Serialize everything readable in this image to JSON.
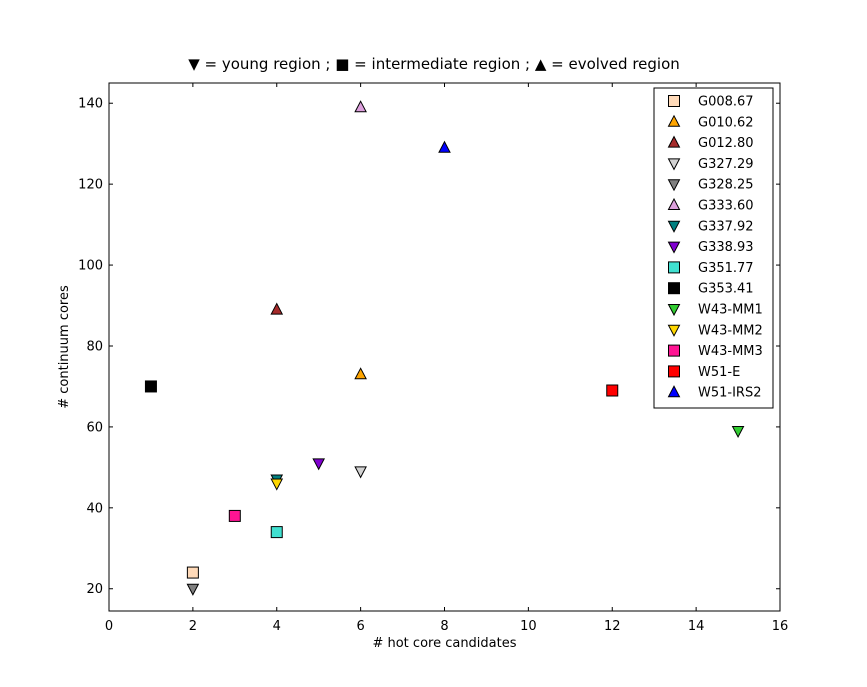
{
  "chart_data": {
    "type": "scatter",
    "title": "▼ = young region ; ■ = intermediate region ; ▲ = evolved region",
    "xlabel": "# hot core candidates",
    "ylabel": "# continuum cores",
    "xlim": [
      0,
      16
    ],
    "ylim": [
      14.5,
      145
    ],
    "xticks": [
      0,
      2,
      4,
      6,
      8,
      10,
      12,
      14,
      16
    ],
    "yticks": [
      20,
      40,
      60,
      80,
      100,
      120,
      140
    ],
    "grid": false,
    "legend_position": "top-right",
    "series": [
      {
        "name": "G008.67",
        "marker": "square",
        "color": "#ffdab9",
        "x": 2,
        "y": 24
      },
      {
        "name": "G010.62",
        "marker": "triangle-up",
        "color": "#ffa500",
        "x": 6,
        "y": 73
      },
      {
        "name": "G012.80",
        "marker": "triangle-up",
        "color": "#a52a2a",
        "x": 4,
        "y": 89
      },
      {
        "name": "G327.29",
        "marker": "triangle-down",
        "color": "#d3d3d3",
        "x": 6,
        "y": 49
      },
      {
        "name": "G328.25",
        "marker": "triangle-down",
        "color": "#808080",
        "x": 2,
        "y": 20
      },
      {
        "name": "G333.60",
        "marker": "triangle-up",
        "color": "#dda0dd",
        "x": 6,
        "y": 139
      },
      {
        "name": "G337.92",
        "marker": "triangle-down",
        "color": "#008080",
        "x": 4,
        "y": 47
      },
      {
        "name": "G338.93",
        "marker": "triangle-down",
        "color": "#8000d0",
        "x": 5,
        "y": 51
      },
      {
        "name": "G351.77",
        "marker": "square",
        "color": "#40e0d0",
        "x": 4,
        "y": 34
      },
      {
        "name": "G353.41",
        "marker": "square",
        "color": "#000000",
        "x": 1,
        "y": 70
      },
      {
        "name": "W43-MM1",
        "marker": "triangle-down",
        "color": "#32cd32",
        "x": 15,
        "y": 59
      },
      {
        "name": "W43-MM2",
        "marker": "triangle-down",
        "color": "#ffd700",
        "x": 4,
        "y": 46
      },
      {
        "name": "W43-MM3",
        "marker": "square",
        "color": "#ff1493",
        "x": 3,
        "y": 38
      },
      {
        "name": "W51-E",
        "marker": "square",
        "color": "#ff0000",
        "x": 12,
        "y": 69
      },
      {
        "name": "W51-IRS2",
        "marker": "triangle-up",
        "color": "#0000ff",
        "x": 8,
        "y": 129
      }
    ]
  }
}
